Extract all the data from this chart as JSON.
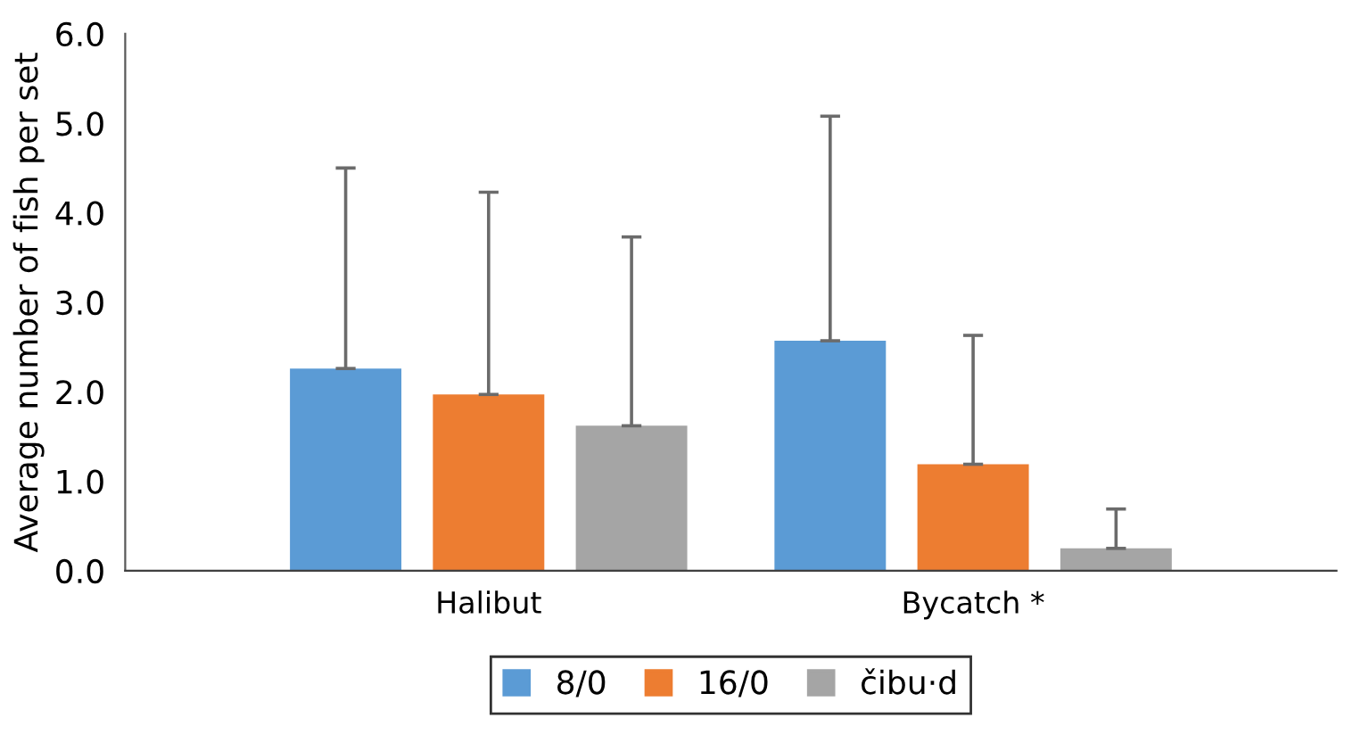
{
  "chart_data": {
    "type": "bar",
    "ylabel": "Average number of fish per set",
    "categories": [
      "Halibut",
      "Bycatch *"
    ],
    "series": [
      {
        "name": "8/0",
        "color": "#5b9bd5",
        "values": [
          2.26,
          2.57
        ],
        "errors": [
          [
            2.26,
            4.5
          ],
          [
            2.57,
            5.08
          ]
        ]
      },
      {
        "name": "16/0",
        "color": "#ed7d31",
        "values": [
          1.97,
          1.19
        ],
        "errors": [
          [
            1.97,
            4.23
          ],
          [
            1.19,
            2.63
          ]
        ]
      },
      {
        "name": "čibu·d",
        "color": "#a5a5a5",
        "values": [
          1.62,
          0.25
        ],
        "errors": [
          [
            1.62,
            3.73
          ],
          [
            0.25,
            0.69
          ]
        ]
      }
    ],
    "ylim": [
      0,
      6
    ],
    "yticks": [
      {
        "value": 0,
        "label": "0.0"
      },
      {
        "value": 1,
        "label": "1.0"
      },
      {
        "value": 2,
        "label": "2.0"
      },
      {
        "value": 3,
        "label": "3.0"
      },
      {
        "value": 4,
        "label": "4.0"
      },
      {
        "value": 5,
        "label": "5.0"
      },
      {
        "value": 6,
        "label": "6.0"
      }
    ],
    "grid": false,
    "legend": "bottom"
  }
}
